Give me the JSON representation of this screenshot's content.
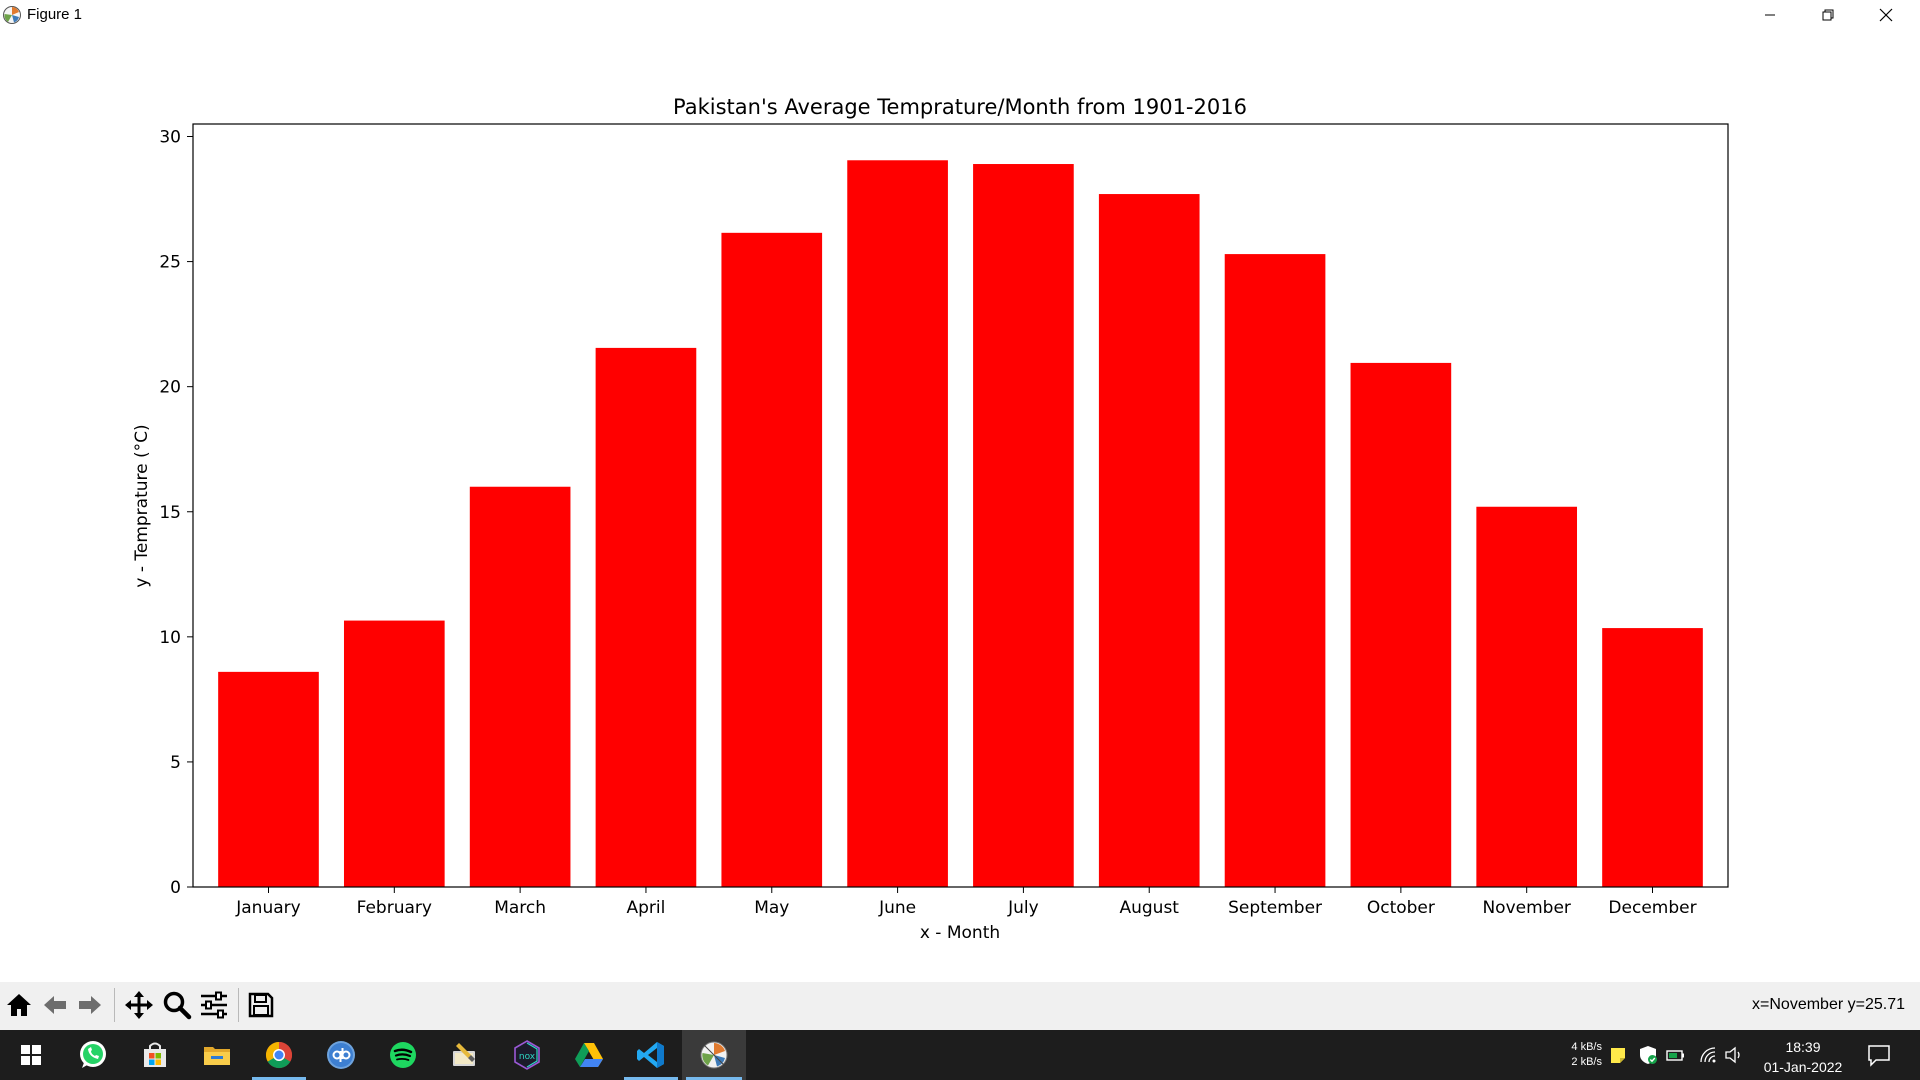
{
  "window": {
    "title": "Figure 1"
  },
  "chart_data": {
    "type": "bar",
    "title": "Pakistan's Average Temprature/Month from 1901-2016",
    "xlabel": "x - Month",
    "ylabel": "y - Temprature (°C)",
    "categories": [
      "January",
      "February",
      "March",
      "April",
      "May",
      "June",
      "July",
      "August",
      "September",
      "October",
      "November",
      "December"
    ],
    "values": [
      8.6,
      10.65,
      16.0,
      21.55,
      26.15,
      29.05,
      28.9,
      27.7,
      25.3,
      20.95,
      15.2,
      10.35
    ],
    "yticks": [
      "0",
      "5",
      "10",
      "15",
      "20",
      "25",
      "30"
    ],
    "ylim": [
      0,
      30.5
    ],
    "bar_color": "#ff0000",
    "grid": false,
    "legend": false
  },
  "toolbar": {
    "tools": [
      "home-icon",
      "back-icon",
      "forward-icon",
      "pan-icon",
      "zoom-icon",
      "configure-subplots-icon",
      "save-icon"
    ],
    "coordinates": "x=November y=25.71"
  },
  "taskbar": {
    "apps": [
      "windows-start-icon",
      "whatsapp-icon",
      "microsoft-store-icon",
      "file-explorer-icon",
      "chrome-icon",
      "qbittorrent-icon",
      "spotify-icon",
      "paint-icon",
      "nox-icon",
      "google-drive-icon",
      "vscode-icon",
      "python-figure-icon"
    ],
    "net_up": "4 kB/s",
    "net_down": "2 kB/s",
    "time": "18:39",
    "date": "01-Jan-2022"
  }
}
